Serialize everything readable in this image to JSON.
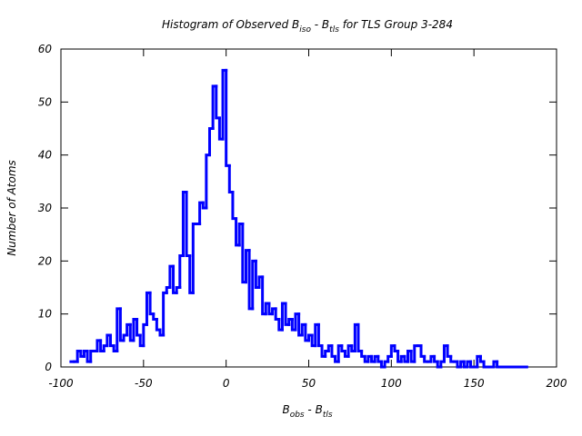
{
  "chart_data": {
    "type": "histogram",
    "title": [
      {
        "text": "Histogram of Observed B"
      },
      {
        "text": "iso",
        "sub": true
      },
      {
        "text": " - B"
      },
      {
        "text": "tls",
        "sub": true
      },
      {
        "text": " for TLS Group 3-284"
      }
    ],
    "xlabel": [
      {
        "text": "B"
      },
      {
        "text": "obs",
        "sub": true
      },
      {
        "text": " - B"
      },
      {
        "text": "tls",
        "sub": true
      }
    ],
    "ylabel": "Number of Atoms",
    "color": "#0000ff",
    "bins": [
      -94,
      -92,
      -90,
      -88,
      -86,
      -84,
      -82,
      -80,
      -78,
      -76,
      -74,
      -72,
      -70,
      -68,
      -66,
      -64,
      -62,
      -60,
      -58,
      -56,
      -54,
      -52,
      -50,
      -48,
      -46,
      -44,
      -42,
      -40,
      -38,
      -36,
      -34,
      -32,
      -30,
      -28,
      -26,
      -24,
      -22,
      -20,
      -18,
      -16,
      -14,
      -12,
      -10,
      -8,
      -6,
      -4,
      -2,
      0,
      2,
      4,
      6,
      8,
      10,
      12,
      14,
      16,
      18,
      20,
      22,
      24,
      26,
      28,
      30,
      32,
      34,
      36,
      38,
      40,
      42,
      44,
      46,
      48,
      50,
      52,
      54,
      56,
      58,
      60,
      62,
      64,
      66,
      68,
      70,
      72,
      74,
      76,
      78,
      80,
      82,
      84,
      86,
      88,
      90,
      92,
      94,
      96,
      98,
      100,
      102,
      104,
      106,
      108,
      110,
      112,
      114,
      116,
      118,
      120,
      122,
      124,
      126,
      128,
      130,
      132,
      134,
      136,
      138,
      140,
      142,
      144,
      146,
      148,
      150,
      152,
      154,
      156,
      158,
      160,
      162,
      164,
      166,
      168,
      170,
      172,
      174,
      176,
      178,
      180,
      182
    ],
    "counts": [
      1,
      1,
      3,
      2,
      3,
      1,
      3,
      3,
      5,
      3,
      4,
      6,
      4,
      3,
      11,
      5,
      6,
      8,
      5,
      9,
      6,
      4,
      8,
      14,
      10,
      9,
      7,
      6,
      14,
      15,
      19,
      14,
      15,
      21,
      33,
      21,
      14,
      27,
      27,
      31,
      30,
      40,
      45,
      53,
      47,
      43,
      56,
      38,
      33,
      28,
      23,
      27,
      16,
      22,
      11,
      20,
      15,
      17,
      10,
      12,
      10,
      11,
      9,
      7,
      12,
      8,
      9,
      7,
      10,
      6,
      8,
      5,
      6,
      4,
      8,
      4,
      2,
      3,
      4,
      2,
      1,
      4,
      3,
      2,
      4,
      3,
      8,
      3,
      2,
      1,
      2,
      1,
      2,
      1,
      0,
      1,
      2,
      4,
      3,
      1,
      2,
      1,
      3,
      1,
      4,
      4,
      2,
      1,
      1,
      2,
      1,
      0,
      1,
      4,
      2,
      1,
      1,
      0,
      1,
      0,
      1,
      0,
      0,
      2,
      1,
      0,
      0,
      0,
      1,
      0,
      0,
      0,
      0,
      0,
      0,
      0,
      0,
      0
    ],
    "xlim": [
      -100,
      200
    ],
    "xticks": [
      -100,
      -50,
      0,
      50,
      100,
      150,
      200
    ],
    "ylim": [
      0,
      60
    ],
    "yticks": [
      0,
      10,
      20,
      30,
      40,
      50,
      60
    ]
  }
}
